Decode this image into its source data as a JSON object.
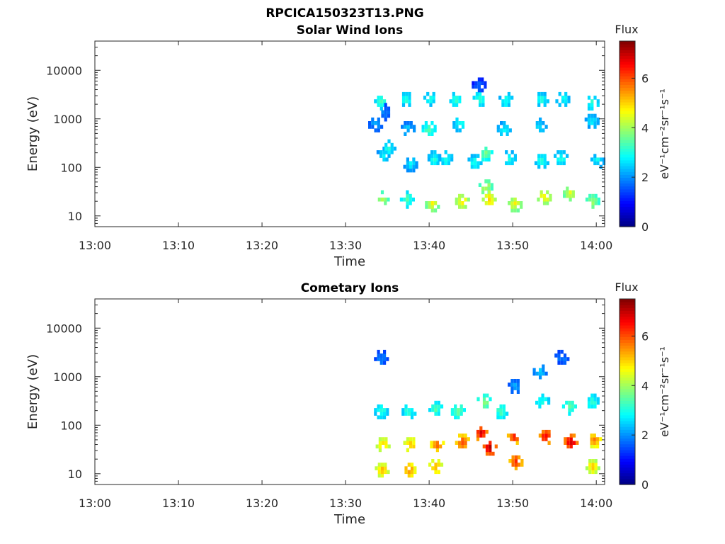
{
  "page_title": "RPCICA150323T13.PNG",
  "chart_data": [
    {
      "type": "heatmap",
      "title": "Solar Wind Ions",
      "xlabel": "Time",
      "ylabel": "Energy (eV)",
      "x_ticks": [
        "13:00",
        "13:10",
        "13:20",
        "13:30",
        "13:40",
        "13:50",
        "14:00"
      ],
      "xlim_minutes": [
        0,
        61
      ],
      "y_ticks": [
        "10",
        "100",
        "1000",
        "10000"
      ],
      "ylim": [
        6,
        40000
      ],
      "y_scale": "log",
      "grid": false,
      "colorbar": {
        "title": "Flux",
        "label": "eV⁻¹cm⁻²sr⁻¹s⁻¹",
        "ticks": [
          "0",
          "2",
          "4",
          "6"
        ],
        "range": [
          0,
          7.5
        ],
        "colormap": "jet"
      },
      "blobs": [
        {
          "t": 33.6,
          "e": 800,
          "v": 2.0
        },
        {
          "t": 34.3,
          "e": 2300,
          "v": 3.0
        },
        {
          "t": 34.8,
          "e": 1400,
          "v": 1.8
        },
        {
          "t": 34.6,
          "e": 180,
          "v": 2.5
        },
        {
          "t": 34.4,
          "e": 22,
          "v": 4.0
        },
        {
          "t": 35.2,
          "e": 250,
          "v": 2.8
        },
        {
          "t": 37.3,
          "e": 2500,
          "v": 2.8
        },
        {
          "t": 37.5,
          "e": 600,
          "v": 2.3
        },
        {
          "t": 37.8,
          "e": 120,
          "v": 2.5
        },
        {
          "t": 37.4,
          "e": 22,
          "v": 3.2
        },
        {
          "t": 40.2,
          "e": 2600,
          "v": 2.8
        },
        {
          "t": 40.0,
          "e": 600,
          "v": 3.2
        },
        {
          "t": 40.7,
          "e": 150,
          "v": 2.8
        },
        {
          "t": 40.4,
          "e": 18,
          "v": 4.3
        },
        {
          "t": 42.0,
          "e": 150,
          "v": 2.8
        },
        {
          "t": 43.3,
          "e": 2500,
          "v": 3.0
        },
        {
          "t": 43.7,
          "e": 800,
          "v": 2.8
        },
        {
          "t": 44.0,
          "e": 20,
          "v": 4.6
        },
        {
          "t": 45.5,
          "e": 130,
          "v": 2.8
        },
        {
          "t": 46.1,
          "e": 2600,
          "v": 3.0
        },
        {
          "t": 46.0,
          "e": 4800,
          "v": 1.5
        },
        {
          "t": 46.8,
          "e": 200,
          "v": 3.4
        },
        {
          "t": 46.8,
          "e": 40,
          "v": 4.0
        },
        {
          "t": 47.2,
          "e": 22,
          "v": 4.8
        },
        {
          "t": 49.2,
          "e": 2400,
          "v": 2.8
        },
        {
          "t": 49.0,
          "e": 600,
          "v": 2.6
        },
        {
          "t": 49.6,
          "e": 150,
          "v": 2.8
        },
        {
          "t": 50.3,
          "e": 18,
          "v": 4.4
        },
        {
          "t": 53.5,
          "e": 2500,
          "v": 2.8
        },
        {
          "t": 53.3,
          "e": 700,
          "v": 2.5
        },
        {
          "t": 53.5,
          "e": 140,
          "v": 2.9
        },
        {
          "t": 53.8,
          "e": 25,
          "v": 4.6
        },
        {
          "t": 56.0,
          "e": 2600,
          "v": 2.8
        },
        {
          "t": 55.8,
          "e": 150,
          "v": 2.8
        },
        {
          "t": 56.9,
          "e": 30,
          "v": 4.2
        },
        {
          "t": 59.5,
          "e": 2200,
          "v": 3.0
        },
        {
          "t": 59.5,
          "e": 900,
          "v": 2.5
        },
        {
          "t": 59.6,
          "e": 20,
          "v": 3.8
        },
        {
          "t": 60.2,
          "e": 140,
          "v": 2.6
        }
      ]
    },
    {
      "type": "heatmap",
      "title": "Cometary Ions",
      "xlabel": "Time",
      "ylabel": "Energy (eV)",
      "x_ticks": [
        "13:00",
        "13:10",
        "13:20",
        "13:30",
        "13:40",
        "13:50",
        "14:00"
      ],
      "xlim_minutes": [
        0,
        61
      ],
      "y_ticks": [
        "10",
        "100",
        "1000",
        "10000"
      ],
      "ylim": [
        6,
        40000
      ],
      "y_scale": "log",
      "grid": false,
      "colorbar": {
        "title": "Flux",
        "label": "eV⁻¹cm⁻²sr⁻¹s⁻¹",
        "ticks": [
          "0",
          "2",
          "4",
          "6"
        ],
        "range": [
          0,
          7.5
        ],
        "colormap": "jet"
      },
      "blobs": [
        {
          "t": 34.3,
          "e": 2400,
          "v": 1.8
        },
        {
          "t": 34.3,
          "e": 200,
          "v": 3.0
        },
        {
          "t": 34.5,
          "e": 40,
          "v": 4.8
        },
        {
          "t": 34.4,
          "e": 12,
          "v": 5.0
        },
        {
          "t": 37.6,
          "e": 200,
          "v": 3.0
        },
        {
          "t": 37.8,
          "e": 40,
          "v": 5.0
        },
        {
          "t": 37.6,
          "e": 12,
          "v": 5.4
        },
        {
          "t": 40.8,
          "e": 220,
          "v": 3.2
        },
        {
          "t": 41.0,
          "e": 40,
          "v": 5.6
        },
        {
          "t": 40.8,
          "e": 14,
          "v": 5.2
        },
        {
          "t": 43.5,
          "e": 200,
          "v": 3.4
        },
        {
          "t": 44.0,
          "e": 45,
          "v": 5.9
        },
        {
          "t": 46.2,
          "e": 70,
          "v": 6.4
        },
        {
          "t": 46.6,
          "e": 300,
          "v": 3.6
        },
        {
          "t": 47.3,
          "e": 35,
          "v": 6.8
        },
        {
          "t": 48.6,
          "e": 200,
          "v": 3.2
        },
        {
          "t": 50.2,
          "e": 60,
          "v": 6.1
        },
        {
          "t": 50.3,
          "e": 650,
          "v": 2.0
        },
        {
          "t": 50.4,
          "e": 18,
          "v": 6.0
        },
        {
          "t": 53.3,
          "e": 1300,
          "v": 2.2
        },
        {
          "t": 53.6,
          "e": 300,
          "v": 3.0
        },
        {
          "t": 54.0,
          "e": 60,
          "v": 6.3
        },
        {
          "t": 55.9,
          "e": 2400,
          "v": 1.8
        },
        {
          "t": 56.8,
          "e": 250,
          "v": 3.4
        },
        {
          "t": 57.0,
          "e": 45,
          "v": 6.6
        },
        {
          "t": 59.5,
          "e": 300,
          "v": 3.0
        },
        {
          "t": 59.8,
          "e": 50,
          "v": 5.4
        },
        {
          "t": 59.6,
          "e": 14,
          "v": 4.8
        }
      ]
    }
  ]
}
